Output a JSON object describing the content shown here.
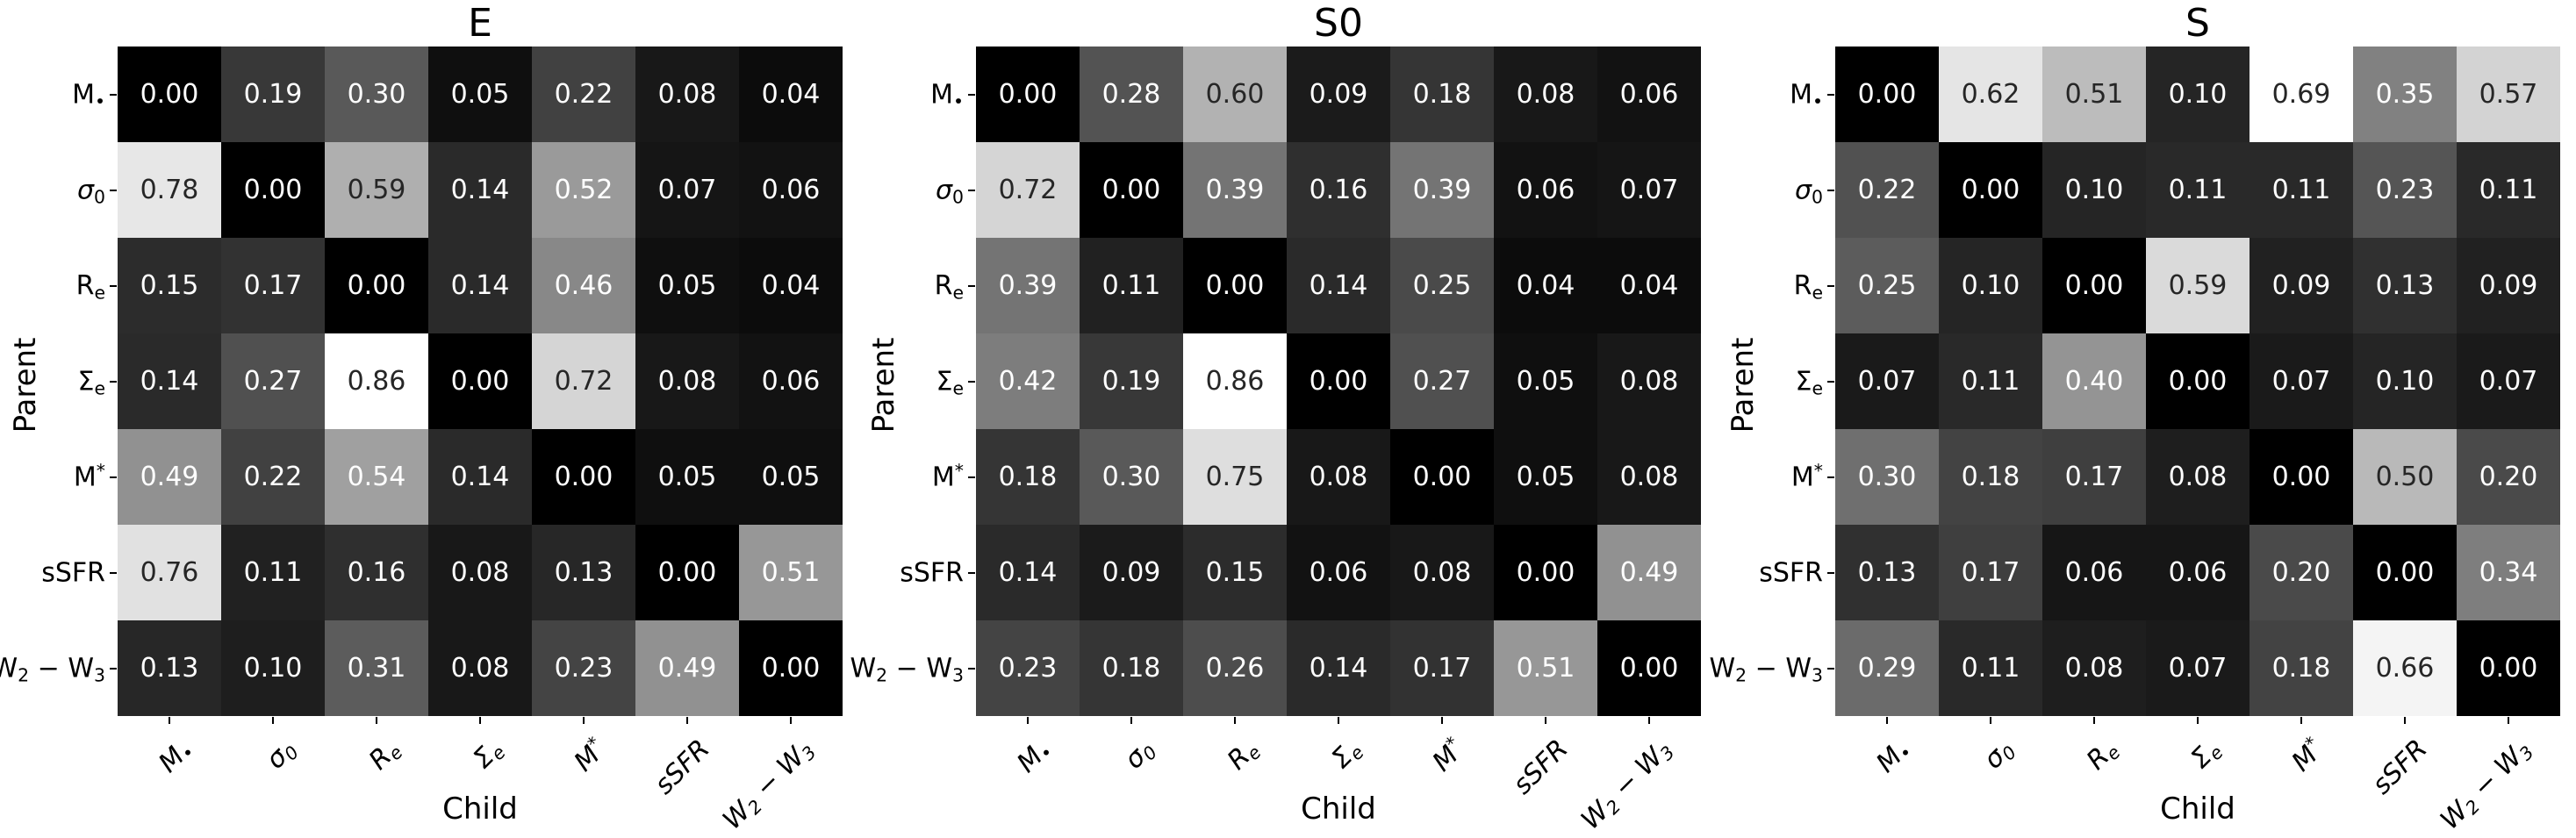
{
  "figure": {
    "background": "#ffffff"
  },
  "style": {
    "colormap": "gray",
    "dark_text": "#262626",
    "light_text": "#ffffff",
    "luminance_threshold": 0.408
  },
  "variables": [
    "M_•",
    "σ_0",
    "R_e",
    "Σ_e",
    "M^*",
    "sSFR",
    "W_2 − W_3"
  ],
  "chart_data": [
    {
      "type": "heatmap",
      "title": "E",
      "xlabel": "Child",
      "ylabel": "Parent",
      "row_labels": [
        "M_•",
        "σ_0",
        "R_e",
        "Σ_e",
        "M^*",
        "sSFR",
        "W_2 − W_3"
      ],
      "col_labels": [
        "M_•",
        "σ_0",
        "R_e",
        "Σ_e",
        "M^*",
        "sSFR",
        "W_2 − W_3"
      ],
      "vmin": 0.0,
      "vmax": 0.86,
      "values": [
        [
          0.0,
          0.19,
          0.3,
          0.05,
          0.22,
          0.08,
          0.04
        ],
        [
          0.78,
          0.0,
          0.59,
          0.14,
          0.52,
          0.07,
          0.06
        ],
        [
          0.15,
          0.17,
          0.0,
          0.14,
          0.46,
          0.05,
          0.04
        ],
        [
          0.14,
          0.27,
          0.86,
          0.0,
          0.72,
          0.08,
          0.06
        ],
        [
          0.49,
          0.22,
          0.54,
          0.14,
          0.0,
          0.05,
          0.05
        ],
        [
          0.76,
          0.11,
          0.16,
          0.08,
          0.13,
          0.0,
          0.51
        ],
        [
          0.13,
          0.1,
          0.31,
          0.08,
          0.23,
          0.49,
          0.0
        ]
      ]
    },
    {
      "type": "heatmap",
      "title": "S0",
      "xlabel": "Child",
      "ylabel": "Parent",
      "row_labels": [
        "M_•",
        "σ_0",
        "R_e",
        "Σ_e",
        "M^*",
        "sSFR",
        "W_2 − W_3"
      ],
      "col_labels": [
        "M_•",
        "σ_0",
        "R_e",
        "Σ_e",
        "M^*",
        "sSFR",
        "W_2 − W_3"
      ],
      "vmin": 0.0,
      "vmax": 0.86,
      "values": [
        [
          0.0,
          0.28,
          0.6,
          0.09,
          0.18,
          0.08,
          0.06
        ],
        [
          0.72,
          0.0,
          0.39,
          0.16,
          0.39,
          0.06,
          0.07
        ],
        [
          0.39,
          0.11,
          0.0,
          0.14,
          0.25,
          0.04,
          0.04
        ],
        [
          0.42,
          0.19,
          0.86,
          0.0,
          0.27,
          0.05,
          0.08
        ],
        [
          0.18,
          0.3,
          0.75,
          0.08,
          0.0,
          0.05,
          0.08
        ],
        [
          0.14,
          0.09,
          0.15,
          0.06,
          0.08,
          0.0,
          0.49
        ],
        [
          0.23,
          0.18,
          0.26,
          0.14,
          0.17,
          0.51,
          0.0
        ]
      ]
    },
    {
      "type": "heatmap",
      "title": "S",
      "xlabel": "Child",
      "ylabel": "Parent",
      "row_labels": [
        "M_•",
        "σ_0",
        "R_e",
        "Σ_e",
        "M^*",
        "sSFR",
        "W_2 − W_3"
      ],
      "col_labels": [
        "M_•",
        "σ_0",
        "R_e",
        "Σ_e",
        "M^*",
        "sSFR",
        "W_2 − W_3"
      ],
      "vmin": 0.0,
      "vmax": 0.69,
      "values": [
        [
          0.0,
          0.62,
          0.51,
          0.1,
          0.69,
          0.35,
          0.57
        ],
        [
          0.22,
          0.0,
          0.1,
          0.11,
          0.11,
          0.23,
          0.11
        ],
        [
          0.25,
          0.1,
          0.0,
          0.59,
          0.09,
          0.13,
          0.09
        ],
        [
          0.07,
          0.11,
          0.4,
          0.0,
          0.07,
          0.1,
          0.07
        ],
        [
          0.3,
          0.18,
          0.17,
          0.08,
          0.0,
          0.5,
          0.2
        ],
        [
          0.13,
          0.17,
          0.06,
          0.06,
          0.2,
          0.0,
          0.34
        ],
        [
          0.29,
          0.11,
          0.08,
          0.07,
          0.18,
          0.66,
          0.0
        ]
      ]
    }
  ]
}
